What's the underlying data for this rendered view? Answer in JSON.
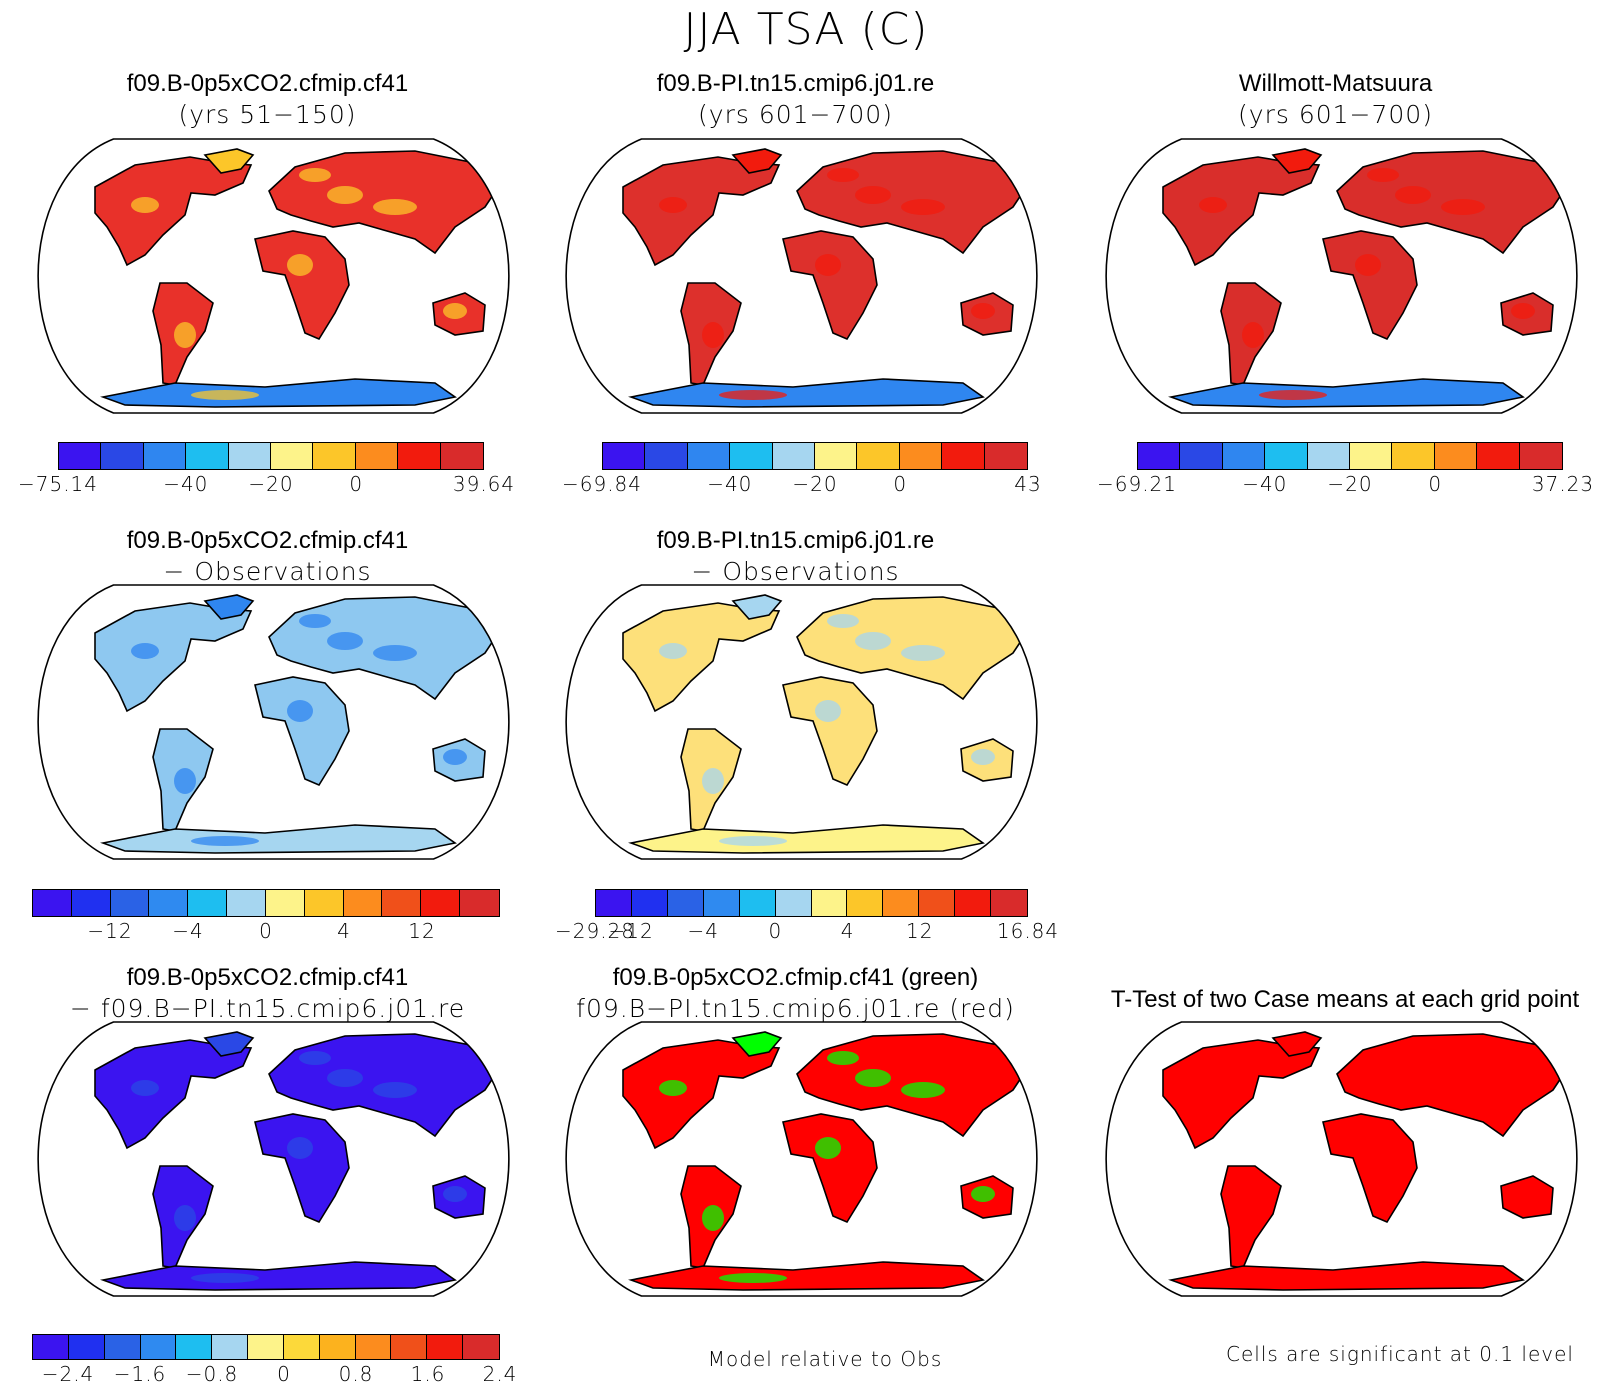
{
  "title": "JJA TSA (C)",
  "colors": {
    "scale12": [
      "#3b14f0",
      "#2a48e6",
      "#2f86f0",
      "#1ebef0",
      "#a6d6f0",
      "#fdf38a",
      "#fcc629",
      "#fc8c1e",
      "#f21b0d",
      "#d92b2b"
    ],
    "diff14": [
      "#3b14f0",
      "#2030f0",
      "#2a62e6",
      "#2f8af0",
      "#1ebef0",
      "#a6d6f0",
      "#fdf38a",
      "#fcd93a",
      "#fcb21e",
      "#fc8c1e",
      "#f0501a",
      "#f21b0d",
      "#d92b2b"
    ],
    "blue_fill": "#3b14f0",
    "red_fill": "#ff0000",
    "green_fill": "#00ff00"
  },
  "panels": [
    {
      "id": "p1",
      "line1": "f09.B-0p5xCO2.cfmip.cf41",
      "line2": "(yrs 51−150)",
      "fill": "#e8312a",
      "accent": "#fcc629",
      "ant": "#2f86f0"
    },
    {
      "id": "p2",
      "line1": "f09.B-PI.tn15.cmip6.j01.re",
      "line2": "(yrs 601−700)",
      "fill": "#dd302c",
      "accent": "#f21b0d",
      "ant": "#2f86f0"
    },
    {
      "id": "p3",
      "line1": "Willmott-Matsuura",
      "line2": "(yrs 601−700)",
      "fill": "#d92e2b",
      "accent": "#f21b0d",
      "ant": "#2f86f0"
    },
    {
      "id": "p4",
      "line1": "f09.B-0p5xCO2.cfmip.cf41",
      "line2": "− Observations",
      "fill": "#8ec8f0",
      "accent": "#2f86f0",
      "ant": "#a6d6f0"
    },
    {
      "id": "p5",
      "line1": "f09.B-PI.tn15.cmip6.j01.re",
      "line2": "− Observations",
      "fill": "#fde07a",
      "accent": "#a6d6f0",
      "ant": "#fdf38a"
    },
    {
      "id": "p6",
      "line1": "f09.B-0p5xCO2.cfmip.cf41",
      "line2": "− f09.B−PI.tn15.cmip6.j01.re",
      "fill": "#3b14f0",
      "accent": "#2a48e6",
      "ant": "#3b14f0"
    },
    {
      "id": "p7",
      "line1": "f09.B-0p5xCO2.cfmip.cf41 (green)",
      "line2": "f09.B−PI.tn15.cmip6.j01.re (red)",
      "fill": "#ff0000",
      "accent": "#00ff00",
      "ant": "#ff0000"
    },
    {
      "id": "p8",
      "line1": "T-Test of two Case means at each grid point",
      "line2": "",
      "fill": "#ff0000",
      "accent": "#ff0000",
      "ant": "#ff0000"
    }
  ],
  "colorbars": [
    {
      "id": "cb1",
      "ticks": [
        "−75.14",
        "−40",
        "−20",
        "0",
        "39.64"
      ]
    },
    {
      "id": "cb2",
      "ticks": [
        "−69.84",
        "−40",
        "−20",
        "0",
        "43"
      ]
    },
    {
      "id": "cb3",
      "ticks": [
        "−69.21",
        "−40",
        "−20",
        "0",
        "37.23"
      ]
    },
    {
      "id": "cb4",
      "ticks": [
        "−12",
        "−4",
        "0",
        "4",
        "12"
      ]
    },
    {
      "id": "cb5",
      "ticks": [
        "−29.28",
        "−12",
        "−4",
        "0",
        "4",
        "12",
        "16.84"
      ]
    },
    {
      "id": "cb6",
      "ticks": [
        "−2.4",
        "−1.6",
        "−0.8",
        "0",
        "0.8",
        "1.6",
        "2.4"
      ]
    }
  ],
  "notes": {
    "model_relative": "Model relative to Obs",
    "significance": "Cells are significant at 0.1 level"
  }
}
